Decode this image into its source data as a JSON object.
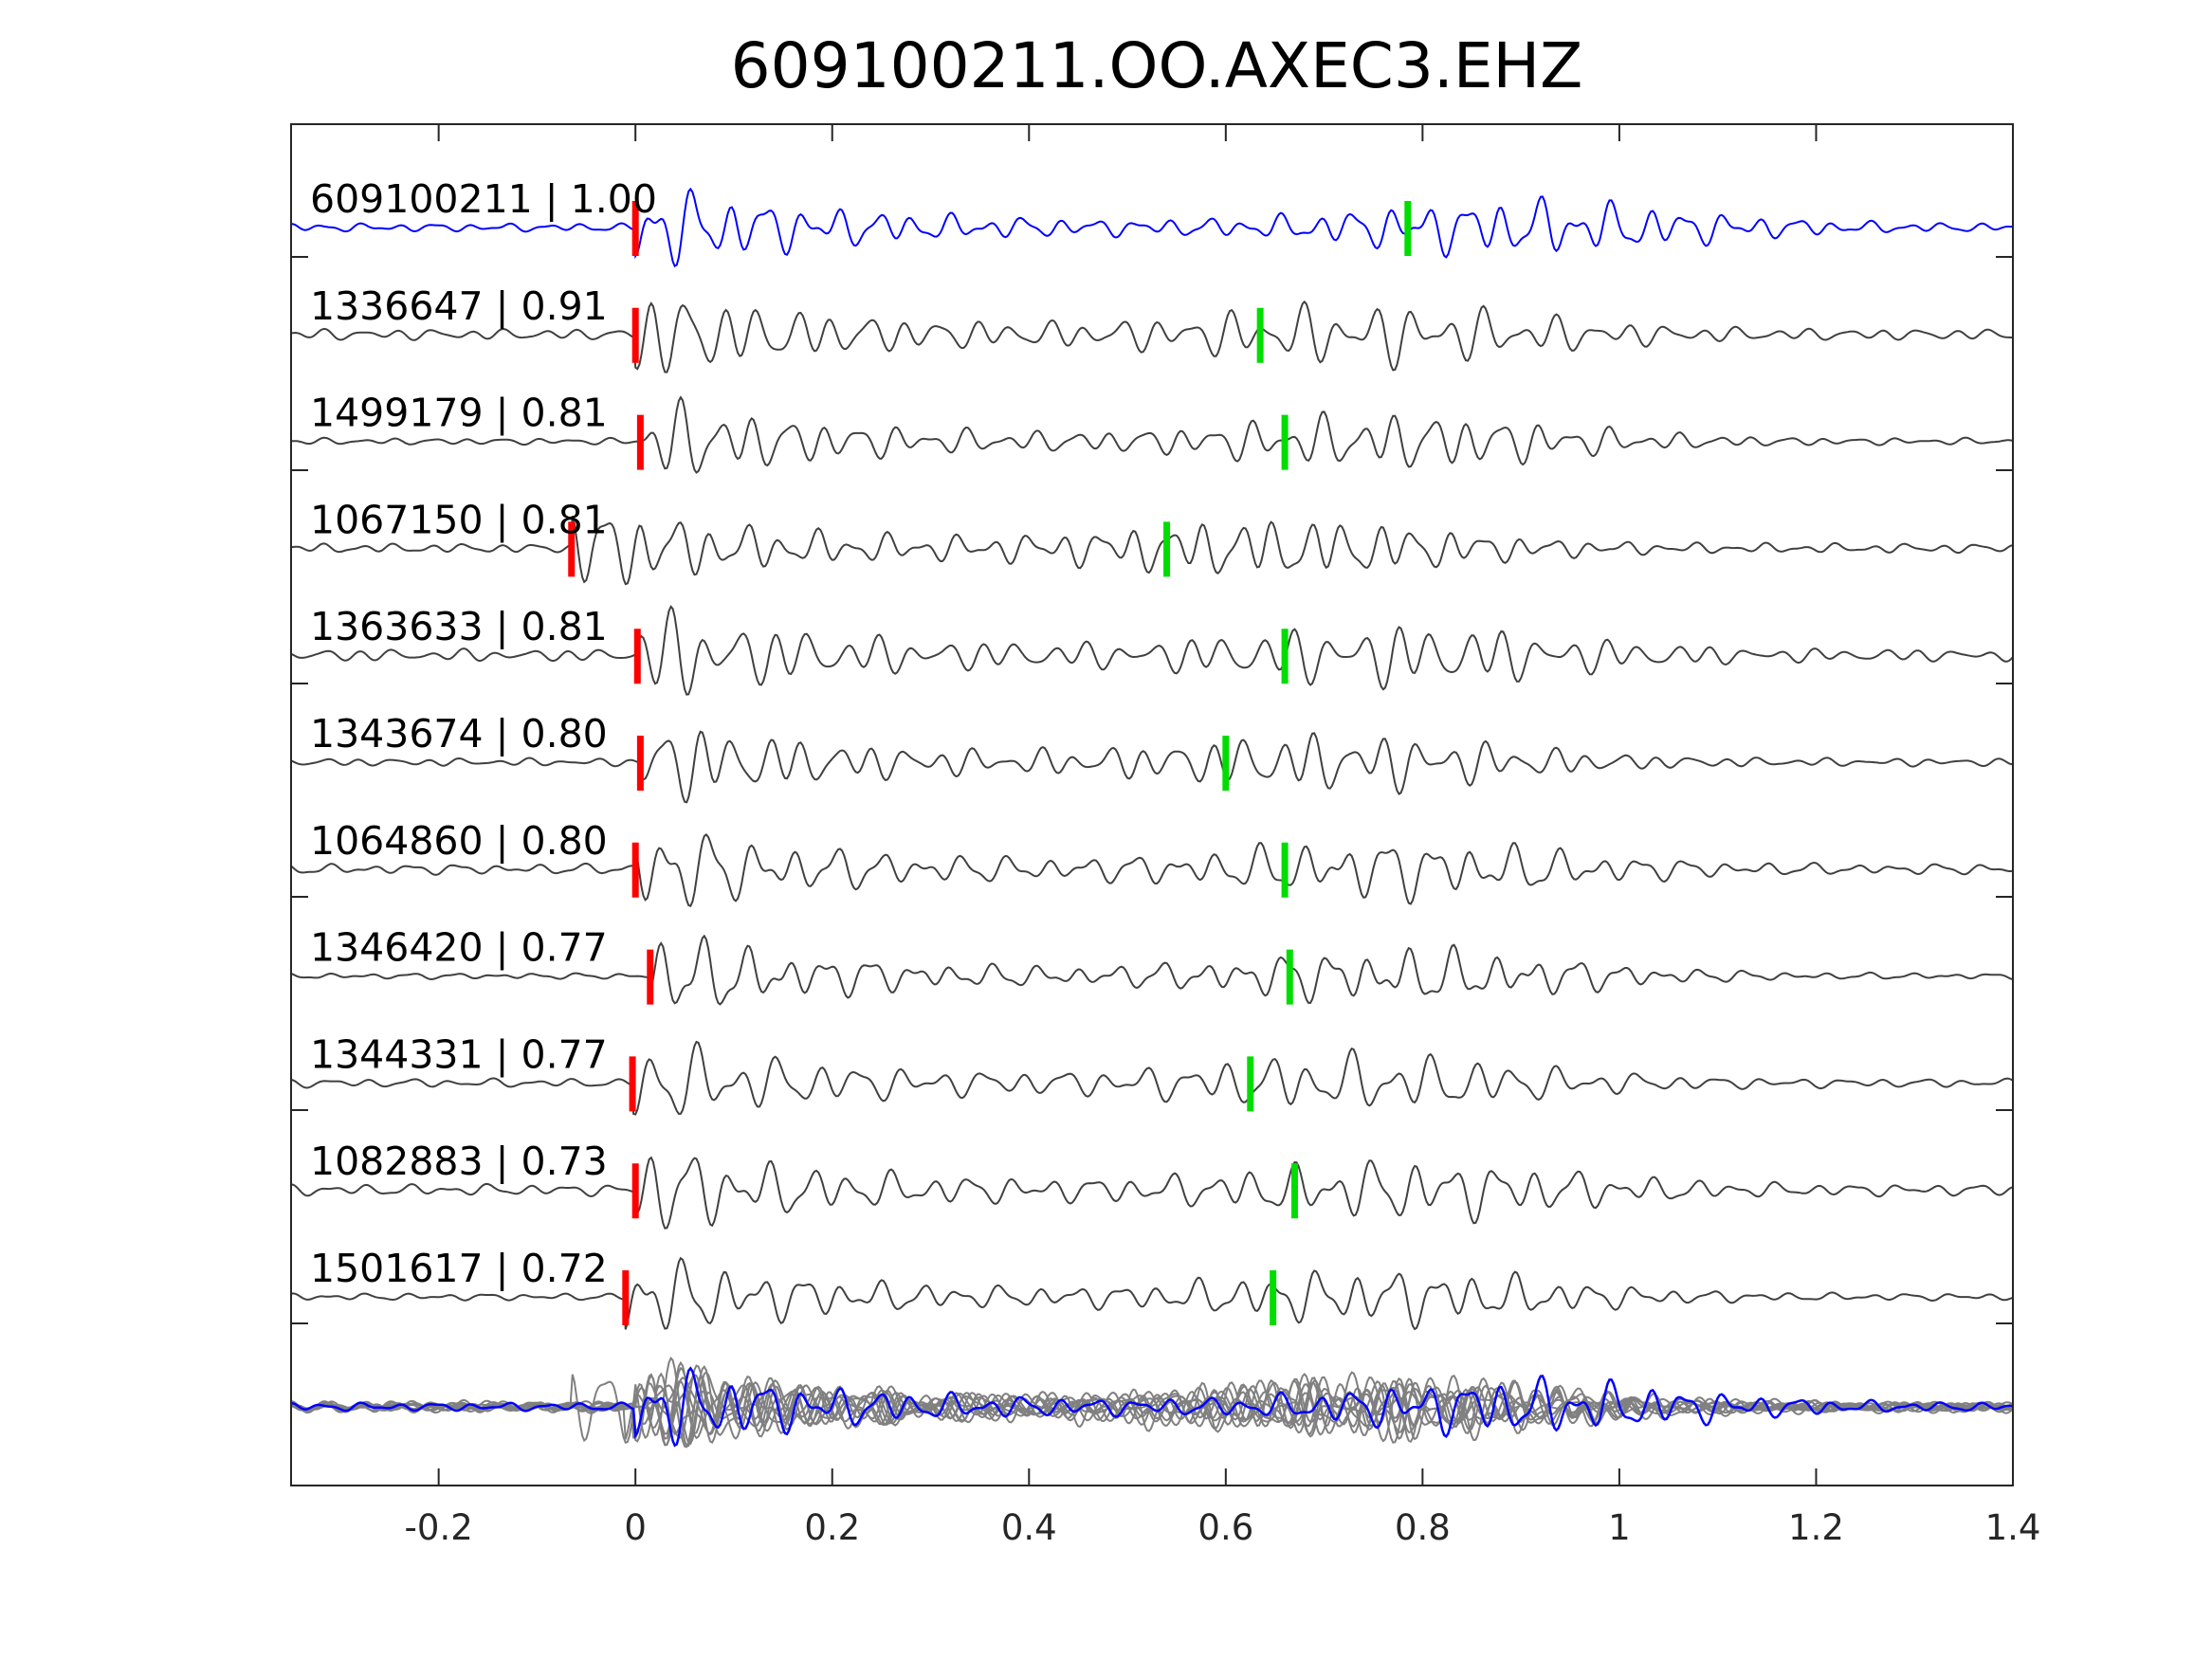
{
  "chart_data": {
    "type": "line",
    "title": "609100211.OO.AXEC3.EHZ",
    "xlabel": "",
    "ylabel": "",
    "xlim": [
      -0.35,
      1.4
    ],
    "xticks": [
      -0.2,
      0,
      0.2,
      0.4,
      0.6,
      0.8,
      1,
      1.2,
      1.4
    ],
    "xtick_labels": [
      "-0.2",
      "0",
      "0.2",
      "0.4",
      "0.6",
      "0.8",
      "1",
      "1.2",
      "1.4"
    ],
    "grid": false,
    "legend": "none",
    "colors": {
      "master": "#0000ff",
      "template": "#404040",
      "stack": "#808080",
      "p_pick": "#ff0000",
      "s_pick": "#00dd00",
      "axes": "#262626"
    },
    "series": [
      {
        "label": "609100211 | 1.00",
        "p_pick": 0.0,
        "s_pick": 0.785
      },
      {
        "label": "1336647 | 0.91",
        "p_pick": 0.0,
        "s_pick": 0.635
      },
      {
        "label": "1499179 | 0.81",
        "p_pick": 0.005,
        "s_pick": 0.66
      },
      {
        "label": "1067150 | 0.81",
        "p_pick": -0.065,
        "s_pick": 0.54
      },
      {
        "label": "1363633 | 0.81",
        "p_pick": 0.002,
        "s_pick": 0.66
      },
      {
        "label": "1343674 | 0.80",
        "p_pick": 0.005,
        "s_pick": 0.6
      },
      {
        "label": "1064860 | 0.80",
        "p_pick": 0.0,
        "s_pick": 0.66
      },
      {
        "label": "1346420 | 0.77",
        "p_pick": 0.015,
        "s_pick": 0.665
      },
      {
        "label": "1344331 | 0.77",
        "p_pick": -0.003,
        "s_pick": 0.625
      },
      {
        "label": "1082883 | 0.73",
        "p_pick": 0.0,
        "s_pick": 0.67
      },
      {
        "label": "1501617 | 0.72",
        "p_pick": -0.01,
        "s_pick": 0.648
      }
    ],
    "stack_panel": {
      "traces": 11
    }
  }
}
